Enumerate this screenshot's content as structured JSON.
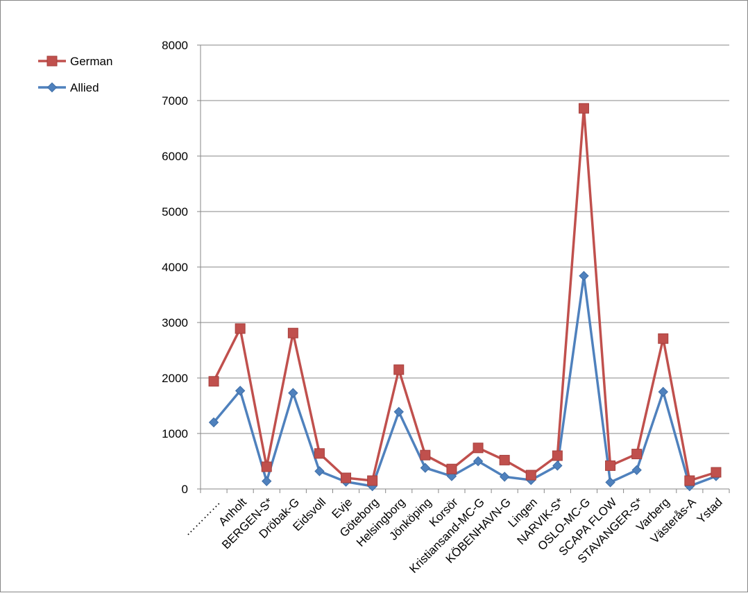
{
  "chart_data": {
    "type": "line",
    "title": "",
    "xlabel": "",
    "ylabel": "",
    "ylim": [
      0,
      8000
    ],
    "yticks": [
      0,
      1000,
      2000,
      3000,
      4000,
      5000,
      6000,
      7000,
      8000
    ],
    "grid": "horizontal",
    "legend_position": "top-left",
    "categories": [
      "…………",
      "Anholt",
      "BERGEN-S*",
      "Dröbak-G",
      "Eidsvoll",
      "Evje",
      "Göteborg",
      "Helsingborg",
      "Jönköping",
      "Korsör",
      "Kristiansand-MC-G",
      "KÖBENHAVN-G",
      "Lingen",
      "NARVIK-S*",
      "OSLO-MC-G",
      "SCAPA FLOW",
      "STAVANGER-S*",
      "Varberg",
      "Västerås-A",
      "Ystad"
    ],
    "series": [
      {
        "name": "German",
        "color": "#C0504D",
        "marker": "square",
        "values": [
          1940,
          2890,
          400,
          2810,
          640,
          200,
          150,
          2150,
          610,
          360,
          740,
          520,
          250,
          600,
          6860,
          420,
          630,
          2710,
          150,
          300
        ]
      },
      {
        "name": "Allied",
        "color": "#4F81BD",
        "marker": "diamond",
        "values": [
          1200,
          1770,
          140,
          1730,
          320,
          130,
          50,
          1390,
          380,
          230,
          500,
          220,
          160,
          420,
          3840,
          120,
          340,
          1750,
          50,
          230
        ]
      }
    ]
  }
}
